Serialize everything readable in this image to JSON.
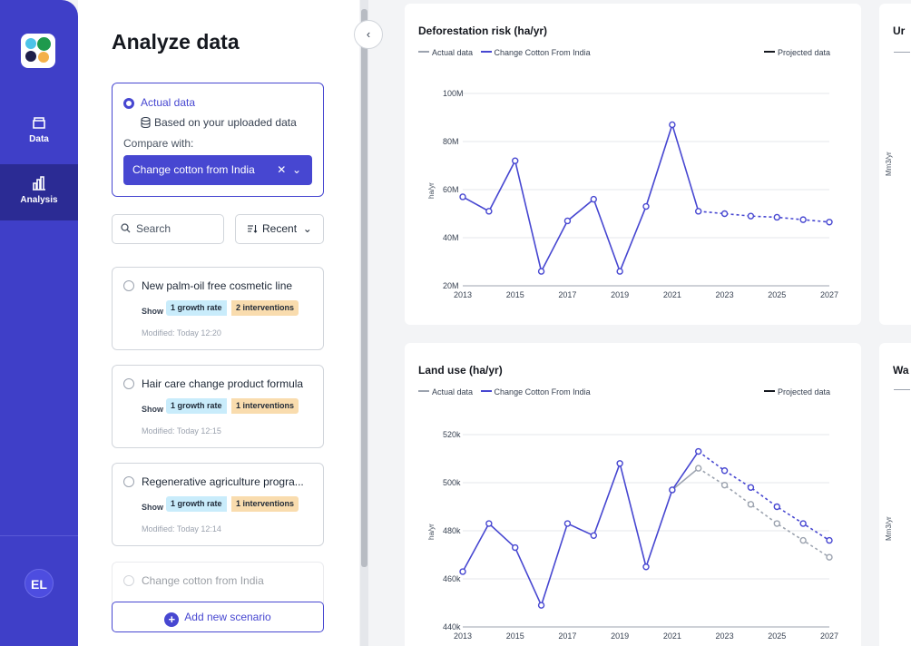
{
  "sidebar": {
    "items": [
      {
        "label": "Data",
        "icon": "box-icon"
      },
      {
        "label": "Analysis",
        "icon": "bar-chart-icon"
      }
    ],
    "avatar": "EL"
  },
  "panel": {
    "title": "Analyze data",
    "actual_data_label": "Actual data",
    "uploaded_label": "Based on your uploaded data",
    "compare_label": "Compare with:",
    "compare_value": "Change cotton from India",
    "search_placeholder": "Search",
    "sort_label": "Recent",
    "add_label": "Add new scenario",
    "scenarios": [
      {
        "title": "New palm-oil free cosmetic line",
        "show": "Show",
        "growth": "1 growth rate",
        "interventions": "2 interventions",
        "modified": "Modified: Today 12:20"
      },
      {
        "title": "Hair care change product formula",
        "show": "Show",
        "growth": "1 growth rate",
        "interventions": "1 interventions",
        "modified": "Modified: Today 12:15"
      },
      {
        "title": "Regenerative agriculture progra...",
        "show": "Show",
        "growth": "1 growth rate",
        "interventions": "1 interventions",
        "modified": "Modified: Today 12:14"
      },
      {
        "title": "Change cotton from India"
      }
    ]
  },
  "legend": {
    "actual": "Actual data",
    "change": "Change Cotton From India",
    "projected": "Projected data"
  },
  "colors": {
    "accent": "#4747d1",
    "actual": "#9ca3af",
    "sidebar": "#3f3fc8"
  },
  "chart_data": [
    {
      "type": "line",
      "title": "Deforestation risk (ha/yr)",
      "ylabel": "ha/yr",
      "ylim": [
        20,
        100
      ],
      "yticks": [
        "100M",
        "80M",
        "60M",
        "40M",
        "20M"
      ],
      "x": [
        2013,
        2014,
        2015,
        2016,
        2017,
        2018,
        2019,
        2020,
        2021,
        2022,
        2023,
        2024,
        2025,
        2026,
        2027
      ],
      "xticks": [
        "2013",
        "2015",
        "2017",
        "2019",
        "2021",
        "2023",
        "2025",
        "2027"
      ],
      "series": [
        {
          "name": "Change Cotton From India",
          "values": [
            57,
            51,
            72,
            26,
            47,
            56,
            26,
            53,
            87,
            51,
            50,
            49,
            48.5,
            47.5,
            46.5
          ],
          "projected_from_index": 9
        }
      ]
    },
    {
      "type": "line",
      "title": "Land use (ha/yr)",
      "ylabel": "ha/yr",
      "ylim": [
        440,
        520
      ],
      "yticks": [
        "520k",
        "500k",
        "480k",
        "460k",
        "440k"
      ],
      "x": [
        2013,
        2014,
        2015,
        2016,
        2017,
        2018,
        2019,
        2020,
        2021,
        2022,
        2023,
        2024,
        2025,
        2026,
        2027
      ],
      "xticks": [
        "2013",
        "2015",
        "2017",
        "2019",
        "2021",
        "2023",
        "2025",
        "2027"
      ],
      "series": [
        {
          "name": "Actual data",
          "values": [
            null,
            null,
            null,
            null,
            null,
            null,
            null,
            null,
            497,
            506,
            499,
            491,
            483,
            476,
            469
          ],
          "projected_from_index": 9
        },
        {
          "name": "Change Cotton From India",
          "values": [
            463,
            483,
            473,
            449,
            483,
            478,
            508,
            465,
            497,
            513,
            505,
            498,
            490,
            483,
            476
          ],
          "projected_from_index": 9
        }
      ]
    }
  ],
  "side_charts": [
    {
      "title": "Ur",
      "ylabel": "Mm3/yr"
    },
    {
      "title": "Wa",
      "ylabel": "Mm3/yr"
    }
  ]
}
